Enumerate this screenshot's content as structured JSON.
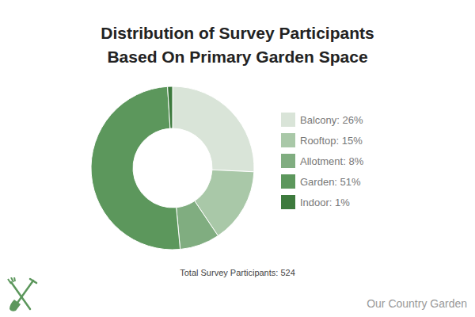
{
  "chart_data": {
    "type": "donut",
    "title": "Distribution of Survey Participants Based On Primary Garden Space",
    "categories": [
      "Balcony: 26%",
      "Rooftop: 15%",
      "Allotment: 8%",
      "Garden: 51%",
      "Indoor: 1%"
    ],
    "values": [
      26,
      15,
      8,
      51,
      1
    ],
    "colors": [
      "#d9e4d8",
      "#a9c8a8",
      "#80ad80",
      "#5c975c",
      "#3d7a3d"
    ],
    "legend": "right",
    "annotations": [
      "Total Survey Participants: 524",
      "Our Country Garden"
    ]
  }
}
